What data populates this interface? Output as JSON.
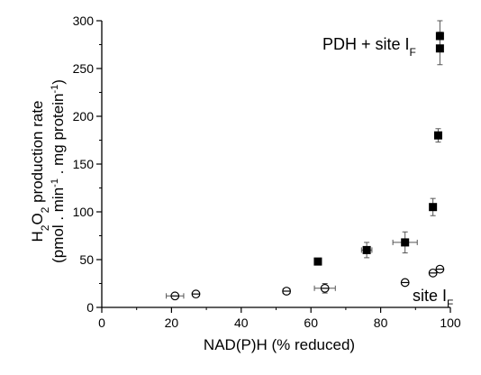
{
  "chart_data": {
    "type": "scatter",
    "xlabel": "NAD(P)H (% reduced)",
    "ylabel_line1": "production rate",
    "ylabel_line2": "(pmol . min . mg protein )",
    "xlim": [
      0,
      100
    ],
    "ylim": [
      0,
      300
    ],
    "x_ticks": [
      0,
      20,
      40,
      60,
      80,
      100
    ],
    "y_ticks": [
      0,
      50,
      100,
      150,
      200,
      250,
      300
    ],
    "grid": false,
    "annotations": {
      "pdh": "PDH + site I",
      "site": "site I",
      "subscript": "F"
    },
    "series": [
      {
        "marker": "filled-square",
        "color": "#000000",
        "points": [
          {
            "x": 62,
            "y": 48
          },
          {
            "x": 76,
            "y": 60,
            "yerr": 8,
            "xerr": 1.5
          },
          {
            "x": 87,
            "y": 68,
            "yerr": 11,
            "xerr": 3.5
          },
          {
            "x": 95,
            "y": 105,
            "yerr": 9
          },
          {
            "x": 96.5,
            "y": 180,
            "yerr": 7
          },
          {
            "x": 97,
            "y": 271,
            "yerr": 17
          },
          {
            "x": 97,
            "y": 284,
            "yerr": 16
          }
        ]
      },
      {
        "marker": "crossed-circle",
        "color": "#000000",
        "points": [
          {
            "x": 21,
            "y": 12,
            "yerr": 3,
            "xerr": 2.5
          },
          {
            "x": 27,
            "y": 14,
            "yerr": 2
          },
          {
            "x": 53,
            "y": 17,
            "yerr": 3,
            "xerr": 1
          },
          {
            "x": 64,
            "y": 20,
            "yerr": 5,
            "xerr": 3
          },
          {
            "x": 87,
            "y": 26,
            "yerr": 2
          },
          {
            "x": 95,
            "y": 36,
            "yerr": 2
          },
          {
            "x": 97,
            "y": 40,
            "yerr": 2
          }
        ]
      }
    ]
  }
}
